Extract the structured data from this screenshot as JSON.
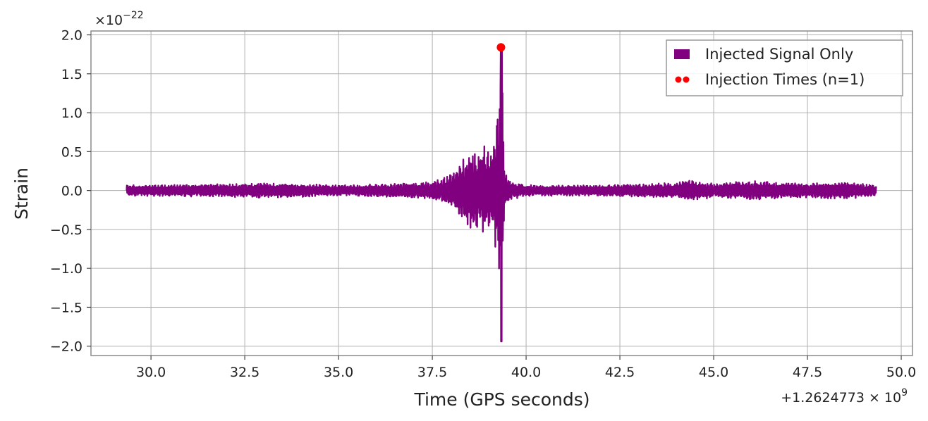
{
  "chart_data": {
    "type": "line",
    "title": "",
    "xlabel": "Time (GPS seconds)",
    "ylabel": "Strain",
    "x_offset_text": "+1.2624773 × 10",
    "x_offset_exp": "9",
    "y_scale_text": "×10",
    "y_scale_exp": "−22",
    "xlim": [
      28.4,
      50.3
    ],
    "ylim": [
      -2.12,
      2.05
    ],
    "xticks": [
      30.0,
      32.5,
      35.0,
      37.5,
      40.0,
      42.5,
      45.0,
      47.5,
      50.0
    ],
    "xtick_labels": [
      "30.0",
      "32.5",
      "35.0",
      "37.5",
      "40.0",
      "42.5",
      "45.0",
      "47.5",
      "50.0"
    ],
    "yticks": [
      2.0,
      1.5,
      1.0,
      0.5,
      0.0,
      -0.5,
      -1.0,
      -1.5,
      -2.0
    ],
    "ytick_labels": [
      "2.0",
      "1.5",
      "1.0",
      "0.5",
      "0.0",
      "−0.5",
      "−1.0",
      "−1.5",
      "−2.0"
    ],
    "grid": true,
    "legend_position": "top-right",
    "series": [
      {
        "name": "Injected Signal Only",
        "color": "#800080",
        "style": "line",
        "x_range": [
          29.35,
          49.33
        ],
        "envelope": [
          [
            29.35,
            0.07
          ],
          [
            31.5,
            0.08
          ],
          [
            33.0,
            0.1
          ],
          [
            35.0,
            0.07
          ],
          [
            36.5,
            0.09
          ],
          [
            37.5,
            0.12
          ],
          [
            37.9,
            0.18
          ],
          [
            38.1,
            0.3
          ],
          [
            38.3,
            0.42
          ],
          [
            38.5,
            0.48
          ],
          [
            38.7,
            0.52
          ],
          [
            38.9,
            0.6
          ],
          [
            39.05,
            0.5
          ],
          [
            39.15,
            0.6
          ],
          [
            39.2,
            0.9
          ],
          [
            39.27,
            1.2
          ],
          [
            39.32,
            1.84
          ],
          [
            39.36,
            1.7
          ],
          [
            39.42,
            0.25
          ],
          [
            39.6,
            0.12
          ],
          [
            40.0,
            0.07
          ],
          [
            42.0,
            0.07
          ],
          [
            44.0,
            0.1
          ],
          [
            44.3,
            0.15
          ],
          [
            45.0,
            0.09
          ],
          [
            46.0,
            0.13
          ],
          [
            47.5,
            0.09
          ],
          [
            48.5,
            0.12
          ],
          [
            49.33,
            0.07
          ]
        ]
      },
      {
        "name": "Injection Times (n=1)",
        "color": "#ff0000",
        "style": "marker",
        "points": [
          [
            39.33,
            1.84
          ]
        ]
      }
    ]
  }
}
